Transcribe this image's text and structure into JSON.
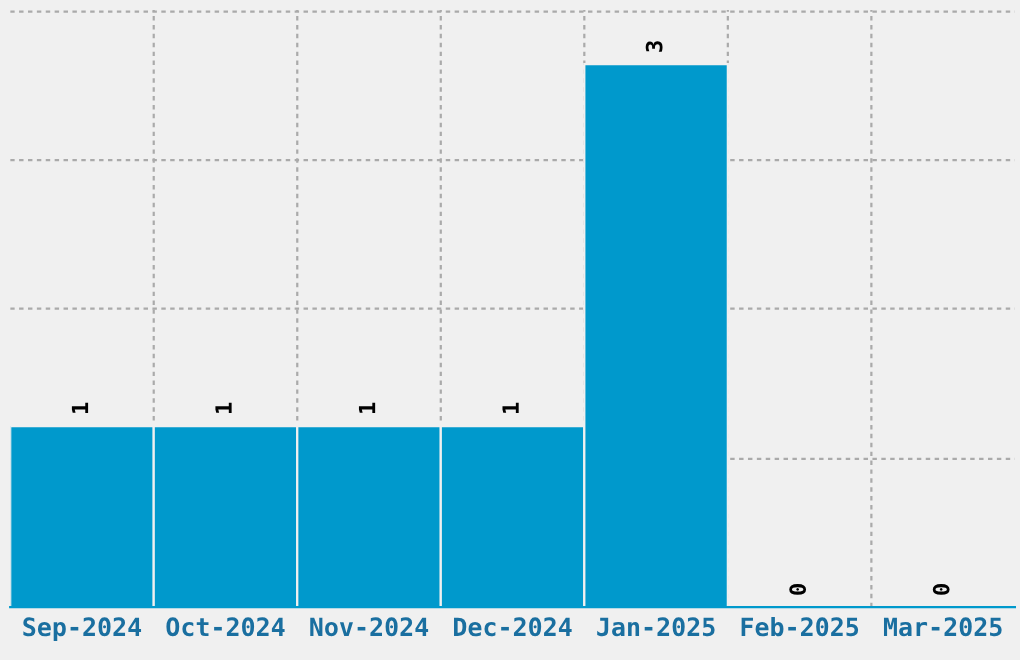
{
  "chart_data": {
    "type": "bar",
    "categories": [
      "Sep-2024",
      "Oct-2024",
      "Nov-2024",
      "Dec-2024",
      "Jan-2025",
      "Feb-2025",
      "Mar-2025"
    ],
    "values": [
      1,
      1,
      1,
      1,
      3,
      0,
      0
    ],
    "color": "#0099cc",
    "data_labels": true,
    "ylim": [
      0,
      3.3
    ],
    "yticks": [
      {
        "value": 0.82,
        "label": null
      },
      {
        "value": 1.65,
        "label": null
      },
      {
        "value": 2.47,
        "label": null
      },
      {
        "value": 3.29,
        "label": null
      }
    ],
    "tick_labels": "x",
    "grid": true
  }
}
